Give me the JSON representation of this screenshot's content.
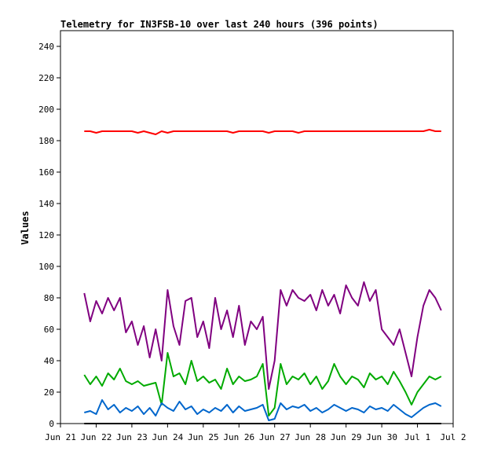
{
  "chart_data": {
    "type": "line",
    "title": "Telemetry for IN3FSB-10 over last 240 hours (396 points)",
    "xlabel": "",
    "ylabel": "Values",
    "ylim": [
      0,
      250
    ],
    "xlim": [
      "2023-06-21T00:00",
      "2023-07-02T00:00"
    ],
    "grid": false,
    "y_ticks": [
      0,
      20,
      40,
      60,
      80,
      100,
      120,
      140,
      160,
      180,
      200,
      220,
      240
    ],
    "x_ticks": [
      {
        "x": "2023-06-21T00:00",
        "label": "Jun 21"
      },
      {
        "x": "2023-06-22T00:00",
        "label": "Jun 22"
      },
      {
        "x": "2023-06-23T00:00",
        "label": "Jun 23"
      },
      {
        "x": "2023-06-24T00:00",
        "label": "Jun 24"
      },
      {
        "x": "2023-06-25T00:00",
        "label": "Jun 25"
      },
      {
        "x": "2023-06-26T00:00",
        "label": "Jun 26"
      },
      {
        "x": "2023-06-27T00:00",
        "label": "Jun 27"
      },
      {
        "x": "2023-06-28T00:00",
        "label": "Jun 28"
      },
      {
        "x": "2023-06-29T00:00",
        "label": "Jun 29"
      },
      {
        "x": "2023-06-30T00:00",
        "label": "Jun 30"
      },
      {
        "x": "2023-07-01T00:00",
        "label": "Jul 1"
      },
      {
        "x": "2023-07-02T00:00",
        "label": "Jul 2"
      }
    ],
    "x": [
      "2023-06-21T16:00",
      "2023-06-21T20:00",
      "2023-06-22T00:00",
      "2023-06-22T04:00",
      "2023-06-22T08:00",
      "2023-06-22T12:00",
      "2023-06-22T16:00",
      "2023-06-22T20:00",
      "2023-06-23T00:00",
      "2023-06-23T04:00",
      "2023-06-23T08:00",
      "2023-06-23T12:00",
      "2023-06-23T16:00",
      "2023-06-23T20:00",
      "2023-06-24T00:00",
      "2023-06-24T04:00",
      "2023-06-24T08:00",
      "2023-06-24T12:00",
      "2023-06-24T16:00",
      "2023-06-24T20:00",
      "2023-06-25T00:00",
      "2023-06-25T04:00",
      "2023-06-25T08:00",
      "2023-06-25T12:00",
      "2023-06-25T16:00",
      "2023-06-25T20:00",
      "2023-06-26T00:00",
      "2023-06-26T04:00",
      "2023-06-26T08:00",
      "2023-06-26T12:00",
      "2023-06-26T16:00",
      "2023-06-26T20:00",
      "2023-06-27T00:00",
      "2023-06-27T04:00",
      "2023-06-27T08:00",
      "2023-06-27T12:00",
      "2023-06-27T16:00",
      "2023-06-27T20:00",
      "2023-06-28T00:00",
      "2023-06-28T04:00",
      "2023-06-28T08:00",
      "2023-06-28T12:00",
      "2023-06-28T16:00",
      "2023-06-28T20:00",
      "2023-06-29T00:00",
      "2023-06-29T04:00",
      "2023-06-29T08:00",
      "2023-06-29T12:00",
      "2023-06-29T16:00",
      "2023-06-29T20:00",
      "2023-06-30T00:00",
      "2023-06-30T04:00",
      "2023-06-30T08:00",
      "2023-06-30T12:00",
      "2023-06-30T16:00",
      "2023-06-30T20:00",
      "2023-07-01T00:00",
      "2023-07-01T04:00",
      "2023-07-01T08:00",
      "2023-07-01T12:00",
      "2023-07-01T16:00"
    ],
    "series": [
      {
        "color": "#ff0000",
        "values": [
          186,
          186,
          185,
          186,
          186,
          186,
          186,
          186,
          186,
          185,
          186,
          185,
          184,
          186,
          185,
          186,
          186,
          186,
          186,
          186,
          186,
          186,
          186,
          186,
          186,
          185,
          186,
          186,
          186,
          186,
          186,
          185,
          186,
          186,
          186,
          186,
          185,
          186,
          186,
          186,
          186,
          186,
          186,
          186,
          186,
          186,
          186,
          186,
          186,
          186,
          186,
          186,
          186,
          186,
          186,
          186,
          186,
          186,
          187,
          186,
          186
        ]
      },
      {
        "color": "#800080",
        "values": [
          83,
          65,
          78,
          70,
          80,
          72,
          80,
          58,
          65,
          50,
          62,
          42,
          60,
          40,
          85,
          62,
          50,
          78,
          80,
          55,
          65,
          48,
          80,
          60,
          72,
          55,
          75,
          50,
          65,
          60,
          68,
          22,
          40,
          85,
          75,
          85,
          80,
          78,
          82,
          72,
          85,
          75,
          82,
          70,
          88,
          80,
          75,
          90,
          78,
          85,
          60,
          55,
          50,
          60,
          45,
          30,
          55,
          75,
          85,
          80,
          72
        ]
      },
      {
        "color": "#00aa00",
        "values": [
          31,
          25,
          30,
          24,
          32,
          28,
          35,
          27,
          25,
          27,
          24,
          25,
          26,
          12,
          45,
          30,
          32,
          25,
          40,
          27,
          30,
          26,
          28,
          22,
          35,
          25,
          30,
          27,
          28,
          30,
          38,
          5,
          10,
          38,
          25,
          30,
          28,
          32,
          25,
          30,
          22,
          27,
          38,
          30,
          25,
          30,
          28,
          23,
          32,
          28,
          30,
          25,
          33,
          27,
          20,
          12,
          20,
          25,
          30,
          28,
          30
        ]
      },
      {
        "color": "#0066cc",
        "values": [
          7,
          8,
          6,
          15,
          9,
          12,
          7,
          10,
          8,
          11,
          6,
          10,
          5,
          13,
          10,
          8,
          14,
          9,
          11,
          6,
          9,
          7,
          10,
          8,
          12,
          7,
          11,
          8,
          9,
          10,
          12,
          2,
          3,
          13,
          9,
          11,
          10,
          12,
          8,
          10,
          7,
          9,
          12,
          10,
          8,
          10,
          9,
          7,
          11,
          9,
          10,
          8,
          12,
          9,
          6,
          4,
          7,
          10,
          12,
          13,
          11
        ]
      },
      {
        "color": "#000000",
        "values": [
          0,
          0,
          0,
          0,
          0,
          0,
          0,
          0,
          0,
          0,
          0,
          0,
          0,
          0,
          0,
          0,
          0,
          0,
          0,
          0,
          0,
          0,
          0,
          0,
          0,
          0,
          0,
          0,
          0,
          0,
          0,
          0,
          0,
          0,
          0,
          0,
          0,
          0,
          0,
          0,
          0,
          0,
          0,
          0,
          0,
          0,
          0,
          0,
          0,
          0,
          0,
          0,
          0,
          0,
          0,
          0,
          0,
          0,
          0,
          0,
          0
        ]
      }
    ]
  }
}
